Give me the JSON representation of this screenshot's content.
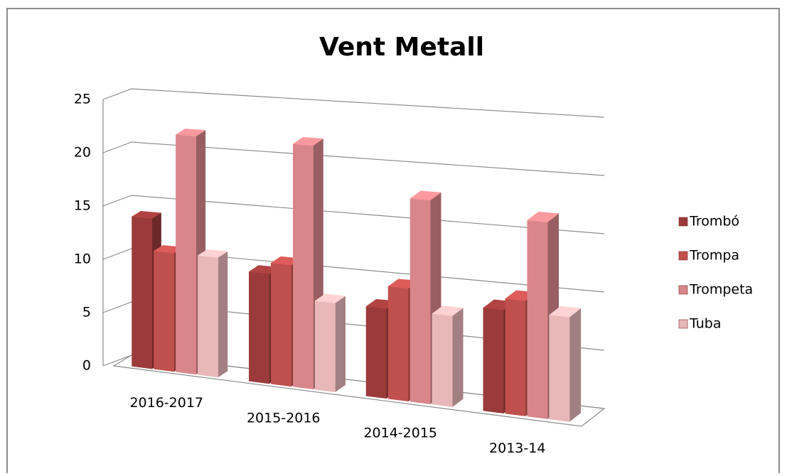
{
  "chart_data": {
    "type": "bar3d",
    "title": "Vent Metall",
    "categories": [
      "2016-2017",
      "2015-2016",
      "2014-2015",
      "2013-14"
    ],
    "series": [
      {
        "name": "Trombó",
        "color": "#9b3a3a",
        "values": [
          14,
          10,
          8,
          9
        ]
      },
      {
        "name": "Trompa",
        "color": "#c0504d",
        "values": [
          11,
          11,
          10,
          10
        ]
      },
      {
        "name": "Trompeta",
        "color": "#d9868a",
        "values": [
          22,
          22,
          18,
          17
        ]
      },
      {
        "name": "Tuba",
        "color": "#e8b7b8",
        "values": [
          11,
          8,
          8,
          9
        ]
      }
    ],
    "ylim": [
      0,
      25
    ],
    "yticks": [
      0,
      5,
      10,
      15,
      20,
      25
    ],
    "grid": true,
    "legend": "right"
  }
}
